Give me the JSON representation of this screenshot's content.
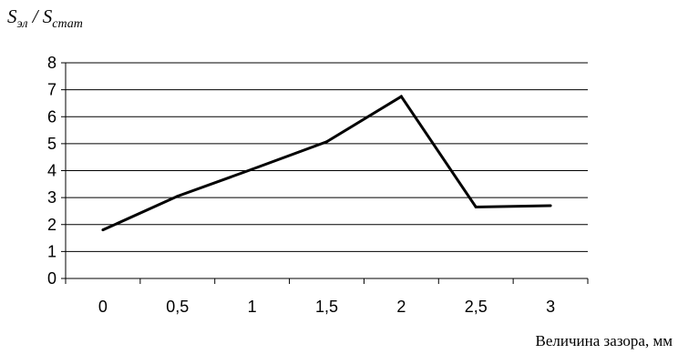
{
  "chart_data": {
    "type": "line",
    "title": "",
    "ylabel": {
      "main1": "S",
      "sub1": "эл",
      "sep": " / ",
      "main2": "S",
      "sub2": "стат"
    },
    "xlabel": "Величина зазора, мм",
    "categories": [
      "0",
      "0,5",
      "1",
      "1,5",
      "2",
      "2,5",
      "3"
    ],
    "y_ticks": [
      "0",
      "1",
      "2",
      "3",
      "4",
      "5",
      "6",
      "7",
      "8"
    ],
    "ylim": [
      0,
      8
    ],
    "grid": "horizontal",
    "series": [
      {
        "values": [
          1.8,
          3.05,
          4.05,
          5.07,
          6.75,
          2.65,
          2.7
        ],
        "color": "#000000"
      }
    ]
  }
}
